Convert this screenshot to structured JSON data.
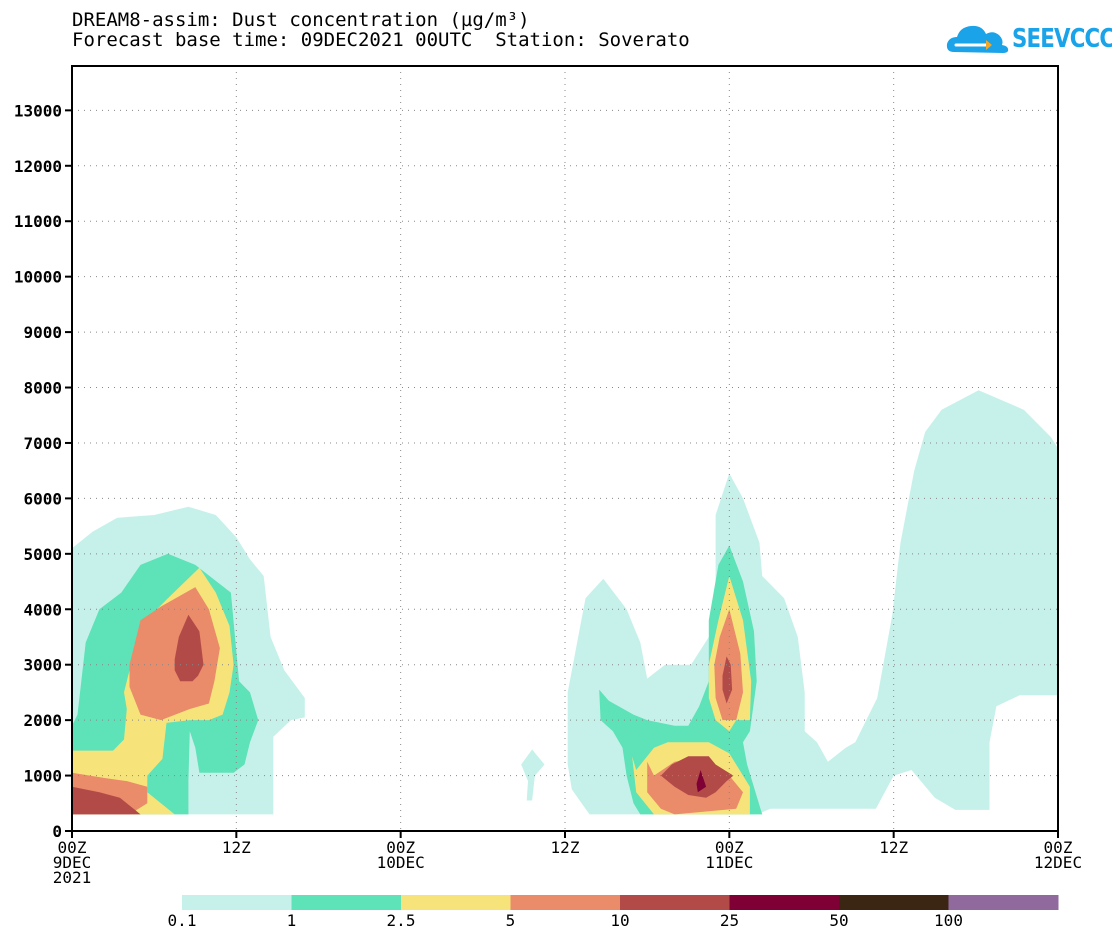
{
  "title": {
    "line1": "DREAM8-assim: Dust concentration (µg/m³)",
    "line2": "Forecast base time: 09DEC2021 00UTC  Station: Soverato"
  },
  "logo": {
    "text": "SEEVCCC",
    "icon": "cloud-icon",
    "color": "#1aa3e8"
  },
  "chart_data": {
    "type": "contour",
    "xlim_hours": [
      0,
      72
    ],
    "ylim": [
      0,
      13800
    ],
    "grid": true,
    "x_ticks": [
      {
        "hour": 0,
        "lines": [
          "00Z",
          "9DEC",
          "2021"
        ]
      },
      {
        "hour": 12,
        "lines": [
          "12Z"
        ]
      },
      {
        "hour": 24,
        "lines": [
          "00Z",
          "10DEC"
        ]
      },
      {
        "hour": 36,
        "lines": [
          "12Z"
        ]
      },
      {
        "hour": 48,
        "lines": [
          "00Z",
          "11DEC"
        ]
      },
      {
        "hour": 60,
        "lines": [
          "12Z"
        ]
      },
      {
        "hour": 72,
        "lines": [
          "00Z",
          "12DEC"
        ]
      }
    ],
    "y_ticks": [
      0,
      1000,
      2000,
      3000,
      4000,
      5000,
      6000,
      7000,
      8000,
      9000,
      10000,
      11000,
      12000,
      13000
    ],
    "levels": [
      {
        "label": "0.1",
        "color": "#c6f1ea"
      },
      {
        "label": "1",
        "color": "#5ee2b8"
      },
      {
        "label": "2.5",
        "color": "#f6e47a"
      },
      {
        "label": "5",
        "color": "#ea8b6a"
      },
      {
        "label": "10",
        "color": "#b24b48"
      },
      {
        "label": "25",
        "color": "#7e0035"
      },
      {
        "label": "50",
        "color": "#3b2513"
      },
      {
        "label": "100",
        "color": "#906a9c"
      }
    ],
    "contours": [
      {
        "level": 0,
        "points": [
          [
            0,
            5100
          ],
          [
            1.5,
            5400
          ],
          [
            3.3,
            5650
          ],
          [
            6,
            5700
          ],
          [
            8.5,
            5850
          ],
          [
            10.5,
            5700
          ],
          [
            12,
            5300
          ],
          [
            13,
            4900
          ],
          [
            14,
            4600
          ],
          [
            14.5,
            3500
          ],
          [
            15.5,
            2900
          ],
          [
            17,
            2400
          ],
          [
            17,
            2050
          ],
          [
            16,
            2000
          ],
          [
            14.7,
            1700
          ],
          [
            14.7,
            300
          ],
          [
            0,
            300
          ]
        ]
      },
      {
        "level": 0,
        "points": [
          [
            32.8,
            1200
          ],
          [
            33.6,
            1470
          ],
          [
            34.5,
            1200
          ],
          [
            33.8,
            1000
          ],
          [
            33.6,
            550
          ],
          [
            33.2,
            550
          ],
          [
            33.3,
            900
          ]
        ]
      },
      {
        "level": 0,
        "points": [
          [
            36.2,
            2500
          ],
          [
            37.5,
            4200
          ],
          [
            38.8,
            4550
          ],
          [
            40.5,
            4000
          ],
          [
            41.5,
            3400
          ],
          [
            42,
            2750
          ],
          [
            43.3,
            3000
          ],
          [
            45.2,
            3000
          ],
          [
            46.5,
            3500
          ],
          [
            47,
            4200
          ],
          [
            47,
            5700
          ],
          [
            48,
            6450
          ],
          [
            49,
            6000
          ],
          [
            50.2,
            5200
          ],
          [
            50.4,
            4600
          ],
          [
            52,
            4200
          ],
          [
            53,
            3500
          ],
          [
            53.5,
            2500
          ],
          [
            53.5,
            1800
          ],
          [
            54.4,
            1600
          ],
          [
            55.2,
            1250
          ],
          [
            56.5,
            1500
          ],
          [
            57.2,
            1600
          ],
          [
            58.8,
            2400
          ],
          [
            59.9,
            3900
          ],
          [
            60.5,
            5200
          ],
          [
            61.5,
            6500
          ],
          [
            62.3,
            7200
          ],
          [
            63.5,
            7600
          ],
          [
            66.2,
            7950
          ],
          [
            69.5,
            7600
          ],
          [
            71.5,
            7100
          ],
          [
            72,
            6900
          ],
          [
            72,
            2450
          ],
          [
            69.2,
            2450
          ],
          [
            67.5,
            2250
          ],
          [
            67,
            1600
          ],
          [
            67,
            380
          ],
          [
            64.5,
            380
          ],
          [
            63,
            600
          ],
          [
            61.3,
            1100
          ],
          [
            60,
            1000
          ],
          [
            58.7,
            400
          ],
          [
            51,
            400
          ],
          [
            50,
            300
          ],
          [
            37.8,
            300
          ],
          [
            37.5,
            400
          ],
          [
            36.5,
            750
          ],
          [
            36.2,
            1200
          ]
        ]
      },
      {
        "level": 1,
        "points": [
          [
            0,
            1900
          ],
          [
            0.4,
            2100
          ],
          [
            1,
            3400
          ],
          [
            2,
            4000
          ],
          [
            3.6,
            4300
          ],
          [
            5,
            4800
          ],
          [
            7,
            5000
          ],
          [
            9,
            4800
          ],
          [
            11.6,
            4300
          ],
          [
            12.2,
            2700
          ],
          [
            13,
            2500
          ],
          [
            13.6,
            2000
          ],
          [
            13,
            1600
          ],
          [
            12.6,
            1200
          ],
          [
            11.8,
            1050
          ],
          [
            9.3,
            1050
          ],
          [
            9,
            1500
          ],
          [
            8.6,
            1800
          ],
          [
            8.5,
            900
          ],
          [
            8.5,
            300
          ],
          [
            0,
            300
          ]
        ]
      },
      {
        "level": 1,
        "points": [
          [
            38.5,
            2550
          ],
          [
            39.2,
            2350
          ],
          [
            41,
            2100
          ],
          [
            42,
            2000
          ],
          [
            44,
            1900
          ],
          [
            45,
            1900
          ],
          [
            45.8,
            2250
          ],
          [
            46.5,
            2700
          ],
          [
            46.5,
            3800
          ],
          [
            47.2,
            4800
          ],
          [
            48,
            5150
          ],
          [
            49,
            4500
          ],
          [
            49.8,
            3600
          ],
          [
            50,
            2700
          ],
          [
            49.5,
            1800
          ],
          [
            49,
            1600
          ],
          [
            49.3,
            1200
          ],
          [
            50.4,
            300
          ],
          [
            41.5,
            300
          ],
          [
            41,
            500
          ],
          [
            40.5,
            1000
          ],
          [
            40.2,
            1500
          ],
          [
            39.5,
            1800
          ],
          [
            38.6,
            2000
          ]
        ]
      },
      {
        "level": 2,
        "points": [
          [
            0,
            1450
          ],
          [
            2,
            1450
          ],
          [
            3,
            1450
          ],
          [
            3.8,
            1650
          ],
          [
            4,
            2200
          ],
          [
            3.8,
            2500
          ],
          [
            4.3,
            3000
          ],
          [
            5,
            3700
          ],
          [
            7,
            4200
          ],
          [
            9.3,
            4750
          ],
          [
            10.5,
            4300
          ],
          [
            11.5,
            3700
          ],
          [
            11.8,
            3000
          ],
          [
            11.5,
            2500
          ],
          [
            11,
            2100
          ],
          [
            10,
            2000
          ],
          [
            8.6,
            2000
          ],
          [
            6.9,
            1950
          ],
          [
            6.6,
            1300
          ],
          [
            5.5,
            1000
          ],
          [
            5.5,
            700
          ],
          [
            7.5,
            300
          ],
          [
            0,
            300
          ]
        ]
      },
      {
        "level": 2,
        "points": [
          [
            40.9,
            1350
          ],
          [
            41.2,
            1100
          ],
          [
            42.5,
            1500
          ],
          [
            43.5,
            1600
          ],
          [
            46.5,
            1600
          ],
          [
            48,
            1400
          ],
          [
            49.5,
            800
          ],
          [
            49.5,
            300
          ],
          [
            42.5,
            300
          ],
          [
            41.2,
            700
          ]
        ]
      },
      {
        "level": 2,
        "points": [
          [
            46.5,
            3000
          ],
          [
            47.2,
            3800
          ],
          [
            48,
            4600
          ],
          [
            49,
            3800
          ],
          [
            49.6,
            2700
          ],
          [
            49.5,
            2000
          ],
          [
            48.5,
            2000
          ],
          [
            48,
            1800
          ],
          [
            47,
            2000
          ],
          [
            46.5,
            2400
          ]
        ]
      },
      {
        "level": 3,
        "points": [
          [
            0,
            1050
          ],
          [
            2.5,
            950
          ],
          [
            4,
            900
          ],
          [
            5.5,
            800
          ],
          [
            5.5,
            500
          ],
          [
            4.2,
            300
          ],
          [
            0,
            300
          ]
        ]
      },
      {
        "level": 3,
        "points": [
          [
            4.2,
            3000
          ],
          [
            5,
            3800
          ],
          [
            6.5,
            4050
          ],
          [
            9,
            4400
          ],
          [
            10,
            4000
          ],
          [
            10.8,
            3300
          ],
          [
            10.4,
            2700
          ],
          [
            10,
            2300
          ],
          [
            8.6,
            2200
          ],
          [
            6.5,
            2000
          ],
          [
            5,
            2100
          ],
          [
            4.2,
            2600
          ]
        ]
      },
      {
        "level": 3,
        "points": [
          [
            42,
            1250
          ],
          [
            42.5,
            1000
          ],
          [
            44,
            1250
          ],
          [
            45.5,
            1300
          ],
          [
            46.5,
            1250
          ],
          [
            48,
            1000
          ],
          [
            49,
            700
          ],
          [
            48.5,
            400
          ],
          [
            44,
            300
          ],
          [
            43,
            400
          ],
          [
            42,
            700
          ]
        ]
      },
      {
        "level": 3,
        "points": [
          [
            46.9,
            3000
          ],
          [
            47.3,
            3500
          ],
          [
            48,
            4000
          ],
          [
            48.8,
            3200
          ],
          [
            49,
            2500
          ],
          [
            48.5,
            2000
          ],
          [
            47.5,
            2000
          ],
          [
            47,
            2400
          ]
        ]
      },
      {
        "level": 4,
        "points": [
          [
            0,
            800
          ],
          [
            2,
            700
          ],
          [
            3.5,
            600
          ],
          [
            4.5,
            400
          ],
          [
            5,
            300
          ],
          [
            0,
            300
          ]
        ]
      },
      {
        "level": 4,
        "points": [
          [
            7.5,
            3100
          ],
          [
            7.8,
            3500
          ],
          [
            8.5,
            3900
          ],
          [
            9.3,
            3600
          ],
          [
            9.6,
            3000
          ],
          [
            9.2,
            2800
          ],
          [
            8.8,
            2700
          ],
          [
            7.9,
            2700
          ],
          [
            7.5,
            2900
          ]
        ]
      },
      {
        "level": 4,
        "points": [
          [
            43,
            1000
          ],
          [
            44,
            800
          ],
          [
            45,
            650
          ],
          [
            46.3,
            600
          ],
          [
            47,
            700
          ],
          [
            47.8,
            900
          ],
          [
            48.3,
            1000
          ],
          [
            47,
            1200
          ],
          [
            46.5,
            1350
          ],
          [
            45,
            1350
          ],
          [
            43.8,
            1200
          ]
        ]
      },
      {
        "level": 4,
        "points": [
          [
            47.5,
            2800
          ],
          [
            47.8,
            3150
          ],
          [
            48.1,
            3000
          ],
          [
            48.2,
            2550
          ],
          [
            47.8,
            2300
          ],
          [
            47.5,
            2550
          ]
        ]
      },
      {
        "level": 5,
        "points": [
          [
            45.6,
            850
          ],
          [
            45.9,
            1100
          ],
          [
            46.3,
            800
          ],
          [
            45.7,
            700
          ]
        ]
      }
    ]
  }
}
